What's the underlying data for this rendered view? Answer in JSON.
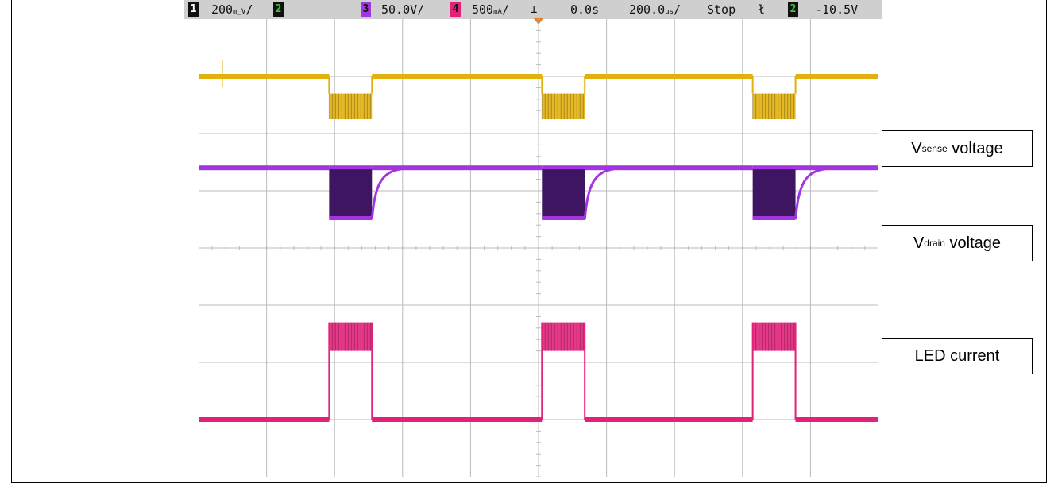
{
  "status_bar": {
    "ch1_num": "1",
    "ch1_scale": "200",
    "ch2_num": "2",
    "ch3_num": "3",
    "ch3_scale": "50.0V/",
    "ch4_num": "4",
    "ch4_scale": "500",
    "delay": "0.0s",
    "timebase": "200.0",
    "run_state": "Stop",
    "trig_ch_num": "2",
    "trig_level": "-10.5V"
  },
  "colors": {
    "ch1": "#e2b10d",
    "ch2": "#3ec43e",
    "ch3": "#a235e0",
    "ch4": "#e4217a",
    "ch3_dark": "#3d1560",
    "grid": "#bbbbbb",
    "trigger": "#e07a1a"
  },
  "labels": {
    "vsense_main": "V",
    "vsense_sub": "sense",
    "vsense_rest": " voltage",
    "vdrain_main": "V",
    "vdrain_sub": "drain",
    "vdrain_rest": " voltage",
    "led": "LED current"
  },
  "chart_data": {
    "type": "line",
    "grid": true,
    "x_divisions": 10,
    "y_divisions": 8,
    "pulses": [
      {
        "start_div": 1.92,
        "end_div": 2.55
      },
      {
        "start_div": 5.05,
        "end_div": 5.68
      },
      {
        "start_div": 8.15,
        "end_div": 8.78
      }
    ],
    "series": [
      {
        "marker": "1",
        "level_div": 1.0,
        "pulse_top_div": 1.3,
        "pulse_bottom_div": 1.75
      },
      {
        "marker": "3",
        "level_div": 2.6,
        "pulse_top_div": 2.6,
        "pulse_bottom_div": 3.5
      },
      {
        "marker": "4",
        "level_div": 7.0,
        "pulse_top_div": 5.3,
        "pulse_bottom_div": 5.8
      }
    ]
  }
}
